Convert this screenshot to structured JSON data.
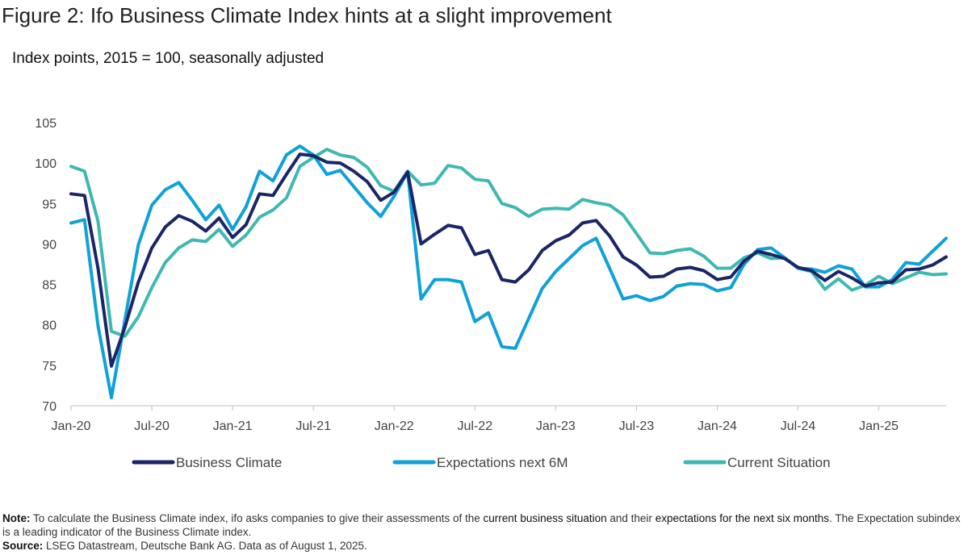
{
  "title": "Figure 2: Ifo Business Climate Index hints at a slight improvement",
  "subtitle": "Index points, 2015 = 100, seasonally adjusted",
  "chart_data": {
    "type": "line",
    "title": "Figure 2: Ifo Business Climate Index hints at a slight improvement",
    "ylabel": "Index points, 2015 = 100, seasonally adjusted",
    "xlabel": "",
    "ylim": [
      70,
      105
    ],
    "yticks": [
      "70",
      "75",
      "80",
      "85",
      "90",
      "95",
      "100",
      "105"
    ],
    "grid": false,
    "legend": "bottom",
    "x_start": "Jan-20",
    "x_end": "Jul-25",
    "xticks": [
      {
        "label": "Jan-20",
        "index": 0
      },
      {
        "label": "Jul-20",
        "index": 6
      },
      {
        "label": "Jan-21",
        "index": 12
      },
      {
        "label": "Jul-21",
        "index": 18
      },
      {
        "label": "Jan-22",
        "index": 24
      },
      {
        "label": "Jul-22",
        "index": 30
      },
      {
        "label": "Jan-23",
        "index": 36
      },
      {
        "label": "Jul-23",
        "index": 42
      },
      {
        "label": "Jan-24",
        "index": 48
      },
      {
        "label": "Jul-24",
        "index": 54
      },
      {
        "label": "Jan-25",
        "index": 60
      }
    ],
    "series": [
      {
        "name": "Business Climate",
        "color": "#1b2567",
        "values": [
          96.2,
          96.0,
          87.0,
          74.9,
          79.7,
          85.3,
          89.5,
          92.1,
          93.5,
          92.8,
          91.6,
          93.2,
          90.8,
          92.4,
          96.2,
          96.0,
          98.6,
          101.1,
          100.9,
          100.1,
          100.0,
          99.0,
          97.7,
          95.4,
          96.4,
          98.9,
          90.0,
          91.2,
          92.3,
          92.0,
          88.7,
          89.2,
          85.6,
          85.3,
          86.8,
          89.2,
          90.4,
          91.1,
          92.6,
          92.9,
          91.0,
          88.4,
          87.4,
          85.9,
          86.0,
          86.9,
          87.1,
          86.7,
          85.6,
          85.9,
          87.9,
          89.1,
          88.7,
          88.2,
          87.1,
          86.7,
          85.5,
          86.6,
          85.8,
          84.8,
          85.2,
          85.3,
          86.8,
          86.9,
          87.4,
          88.4
        ]
      },
      {
        "name": "Expectations next 6M",
        "color": "#0fa1d9",
        "values": [
          92.6,
          93.0,
          79.9,
          71.0,
          80.6,
          89.9,
          94.8,
          96.7,
          97.6,
          95.4,
          93.0,
          94.8,
          91.8,
          94.6,
          99.0,
          97.8,
          101.0,
          102.1,
          101.0,
          98.6,
          99.1,
          97.1,
          95.1,
          93.4,
          95.9,
          98.9,
          83.2,
          85.6,
          85.6,
          85.3,
          80.4,
          81.5,
          77.3,
          77.1,
          80.8,
          84.5,
          86.6,
          88.2,
          89.8,
          90.7,
          87.0,
          83.2,
          83.6,
          83.0,
          83.5,
          84.8,
          85.1,
          85.0,
          84.2,
          84.6,
          87.5,
          89.3,
          89.5,
          88.3,
          87.0,
          86.9,
          86.5,
          87.3,
          86.9,
          84.7,
          84.7,
          85.6,
          87.7,
          87.5,
          89.1,
          90.7
        ]
      },
      {
        "name": "Current Situation",
        "color": "#3fb8b2",
        "values": [
          99.6,
          99.0,
          92.8,
          79.2,
          78.6,
          81.0,
          84.6,
          87.7,
          89.5,
          90.5,
          90.3,
          91.8,
          89.7,
          91.1,
          93.3,
          94.2,
          95.7,
          99.6,
          100.7,
          101.7,
          101.0,
          100.7,
          99.5,
          97.2,
          96.5,
          99.0,
          97.3,
          97.5,
          99.7,
          99.4,
          98.0,
          97.8,
          95.0,
          94.5,
          93.4,
          94.3,
          94.4,
          94.3,
          95.5,
          95.1,
          94.8,
          93.6,
          91.3,
          88.9,
          88.8,
          89.2,
          89.4,
          88.5,
          87.0,
          87.0,
          88.3,
          88.9,
          88.2,
          88.3,
          87.0,
          86.6,
          84.4,
          85.7,
          84.3,
          84.9,
          86.0,
          85.1,
          85.8,
          86.5,
          86.2,
          86.3
        ]
      }
    ]
  },
  "footer": {
    "note_label": "Note:",
    "note_part1": "To calculate the Business Climate index, ifo asks companies to give their assessments of the ",
    "note_hl1": "current business situation",
    "note_part2": " and their ",
    "note_hl2": "expectations for the next six months",
    "note_part3": ". The Expectation subindex  is a leading indicator of the Business Climate index.",
    "source_label": "Source:",
    "source_text": "LSEG Datastream, Deutsche Bank AG. Data as of August 1, 2025."
  }
}
